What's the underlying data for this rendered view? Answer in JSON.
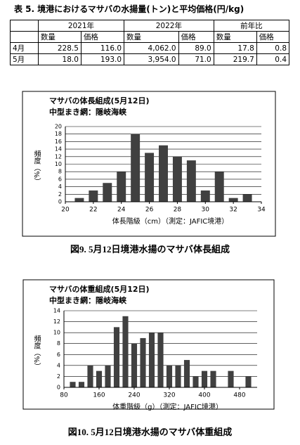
{
  "table": {
    "title": "表 5. 境港におけるマサバの水揚量(トン)と平均価格(円/kg)",
    "groups": [
      "2021年",
      "2022年",
      "前年比"
    ],
    "subheaders": [
      "数量",
      "価格",
      "数量",
      "価格",
      "数量",
      "価格"
    ],
    "rows": [
      [
        "4月",
        "228.5",
        "116.0",
        "4,062.0",
        "89.0",
        "17.8",
        "0.8"
      ],
      [
        "5月",
        "18.0",
        "193.0",
        "3,954.0",
        "71.0",
        "219.7",
        "0.4"
      ]
    ]
  },
  "charts": [
    {
      "type": "bar",
      "title": "マサバの体長組成(5月12日)",
      "subtitle": "中型まき網：隠岐海峡",
      "ylabel": "頻度（%）",
      "xlabel": "体長階級（cm）（測定：JAFIC境港）",
      "x": [
        21,
        22,
        23,
        24,
        25,
        26,
        27,
        28,
        29,
        30,
        31,
        32,
        33
      ],
      "values": [
        1,
        3,
        5,
        8,
        18,
        13,
        15,
        12,
        11,
        3,
        8,
        1,
        2
      ],
      "xlim": [
        20,
        34
      ],
      "xticks": [
        20,
        22,
        24,
        26,
        28,
        30,
        32,
        34
      ],
      "ylim": [
        0,
        20
      ],
      "yticks": [
        0,
        2,
        4,
        6,
        8,
        10,
        12,
        14,
        16,
        18,
        20
      ],
      "color": "#404040",
      "grid": true,
      "caption": "図9. 5月12日境港水揚のマサバ体長組成"
    },
    {
      "type": "bar",
      "title": "マサバの体重組成(5月12日)",
      "subtitle": "中型まき網：隠岐海峡",
      "ylabel": "頻度（%）",
      "xlabel": "体重階級（g）（測定：JAFIC境港）",
      "x": [
        100,
        120,
        140,
        160,
        180,
        200,
        220,
        240,
        260,
        280,
        300,
        320,
        340,
        360,
        380,
        400,
        420,
        440,
        460,
        480,
        500
      ],
      "values": [
        1,
        1,
        4,
        3,
        4,
        11,
        13,
        8,
        9,
        10,
        10,
        4,
        4,
        5,
        2,
        3,
        3,
        0,
        3,
        0,
        2
      ],
      "xlim": [
        80,
        520
      ],
      "xticks": [
        80,
        160,
        240,
        320,
        400,
        480
      ],
      "ylim": [
        0,
        14
      ],
      "yticks": [
        0,
        2,
        4,
        6,
        8,
        10,
        12,
        14
      ],
      "color": "#404040",
      "grid": true,
      "caption": "図10. 5月12日境港水揚のマサバ体重組成"
    }
  ]
}
